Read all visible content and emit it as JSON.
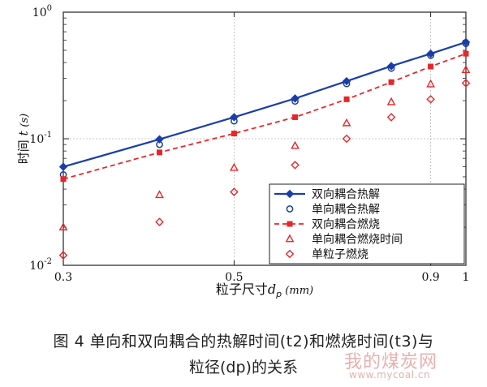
{
  "chart_data": {
    "type": "line",
    "xlabel_prefix": "粒子尺寸",
    "xlabel_var": "d",
    "xlabel_sub": "p",
    "xlabel_unit": "(mm)",
    "ylabel_prefix": "时间",
    "ylabel_var": "t",
    "ylabel_unit": "(s)",
    "x_scale": "log",
    "y_scale": "log",
    "xlim": [
      0.3,
      1.0
    ],
    "ylim": [
      0.01,
      1.0
    ],
    "x_ticks": [
      {
        "value": 0.3,
        "label": "0.3"
      },
      {
        "value": 0.5,
        "label": "0.5"
      },
      {
        "value": 0.9,
        "label": "0.9"
      },
      {
        "value": 1.0,
        "label": "1"
      }
    ],
    "y_ticks": [
      {
        "value": 0.01,
        "base": "10",
        "exp": "-2"
      },
      {
        "value": 0.1,
        "base": "10",
        "exp": "-1"
      },
      {
        "value": 1.0,
        "base": "10",
        "exp": "0"
      }
    ],
    "grid": true,
    "legend_position": "bottom-right",
    "series": [
      {
        "name": "双向耦合热解",
        "style": "solid-line-diamond",
        "color": "#1a3ea8",
        "x": [
          0.3,
          0.4,
          0.5,
          0.6,
          0.7,
          0.8,
          0.9,
          1.0
        ],
        "y": [
          0.06,
          0.099,
          0.148,
          0.208,
          0.285,
          0.375,
          0.47,
          0.58
        ]
      },
      {
        "name": "单向耦合热解",
        "style": "open-circle",
        "color": "#1a3ea8",
        "x": [
          0.3,
          0.4,
          0.5,
          0.6,
          0.7,
          0.8,
          0.9,
          1.0
        ],
        "y": [
          0.052,
          0.09,
          0.138,
          0.198,
          0.272,
          0.36,
          0.455,
          0.565
        ]
      },
      {
        "name": "双向耦合燃烧",
        "style": "dashed-line-square",
        "color": "#e8262a",
        "x": [
          0.3,
          0.4,
          0.5,
          0.6,
          0.7,
          0.8,
          0.9,
          1.0
        ],
        "y": [
          0.048,
          0.078,
          0.11,
          0.148,
          0.205,
          0.28,
          0.372,
          0.47
        ]
      },
      {
        "name": "单向耦合燃烧时间",
        "style": "open-triangle",
        "color": "#e8262a",
        "x": [
          0.3,
          0.4,
          0.5,
          0.6,
          0.7,
          0.8,
          0.9,
          1.0
        ],
        "y": [
          0.02,
          0.036,
          0.059,
          0.088,
          0.133,
          0.195,
          0.27,
          0.35
        ]
      },
      {
        "name": "单粒子燃烧",
        "style": "open-diamond",
        "color": "#e8262a",
        "x": [
          0.3,
          0.4,
          0.5,
          0.6,
          0.7,
          0.8,
          0.9,
          1.0
        ],
        "y": [
          0.012,
          0.022,
          0.038,
          0.062,
          0.1,
          0.148,
          0.205,
          0.275
        ]
      }
    ]
  },
  "caption": {
    "line1": "图 4 单向和双向耦合的热解时间(t2)和燃烧时间(t3)与",
    "line2": "粒径(dp)的关系"
  },
  "watermark": {
    "text": "我的煤炭网",
    "url": "www.mycoal.cn"
  }
}
